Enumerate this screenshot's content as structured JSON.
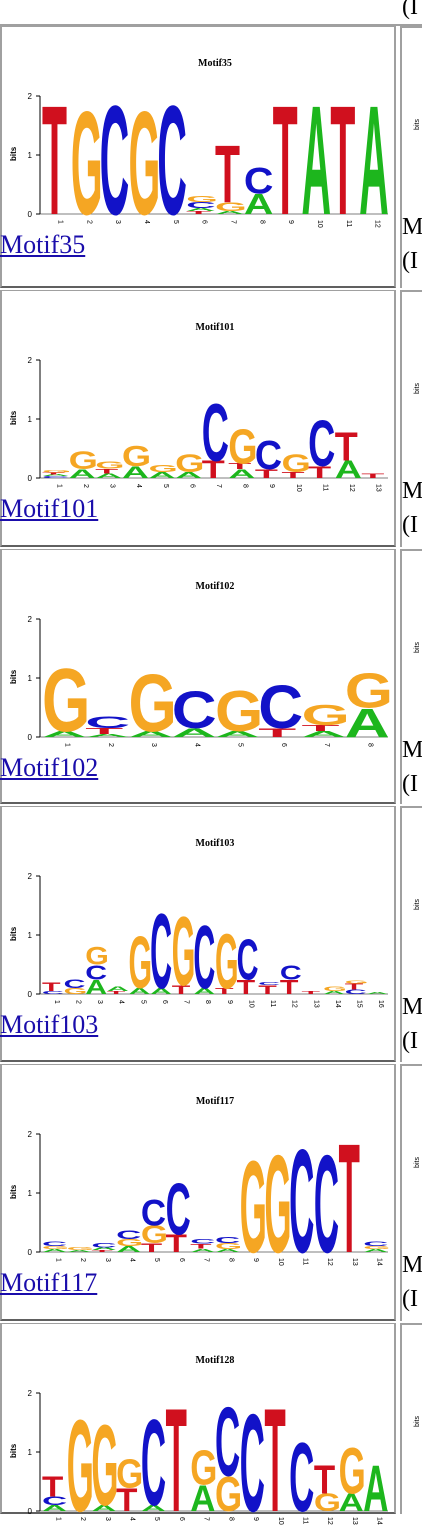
{
  "header": {
    "cut_text": "(I"
  },
  "rows": [
    {
      "title": "Motif35",
      "link": "Motif35",
      "right1": "M",
      "right2": "(I",
      "columns": 12
    },
    {
      "title": "Motif101",
      "link": "Motif101",
      "right1": "M",
      "right2": "(I",
      "columns": 13
    },
    {
      "title": "Motif102",
      "link": "Motif102",
      "right1": "M",
      "right2": "(I",
      "columns": 8
    },
    {
      "title": "Motif103",
      "link": "Motif103",
      "right1": "M",
      "right2": "(I",
      "columns": 16
    },
    {
      "title": "Motif117",
      "link": "Motif117",
      "right1": "M",
      "right2": "(I",
      "columns": 14
    },
    {
      "title": "Motif128",
      "link": "Motif128",
      "right1": "M",
      "right2": "(I",
      "columns": 14
    }
  ],
  "axis": {
    "ylabel": "bits",
    "ticks": [
      "0",
      "1",
      "2"
    ]
  },
  "colors": {
    "A": "#1db61d",
    "C": "#1212c8",
    "G": "#f5a623",
    "T": "#d0101e",
    "link": "#1a0dab"
  },
  "logos": [
    [
      [
        [
          "T",
          1.9
        ]
      ],
      [
        [
          "G",
          1.8
        ]
      ],
      [
        [
          "C",
          1.9
        ]
      ],
      [
        [
          "G",
          1.8
        ]
      ],
      [
        [
          "C",
          1.9
        ]
      ],
      [
        [
          "T",
          0.05
        ],
        [
          "A",
          0.05
        ],
        [
          "C",
          0.1
        ],
        [
          "G",
          0.1
        ]
      ],
      [
        [
          "A",
          0.05
        ],
        [
          "G",
          0.15
        ],
        [
          "T",
          1.0
        ]
      ],
      [
        [
          "A",
          0.35
        ],
        [
          "C",
          0.45
        ]
      ],
      [
        [
          "T",
          1.9
        ]
      ],
      [
        [
          "A",
          1.9
        ]
      ],
      [
        [
          "T",
          1.9
        ]
      ],
      [
        [
          "A",
          1.9
        ]
      ]
    ],
    [
      [
        [
          "C",
          0.03
        ],
        [
          "A",
          0.03
        ],
        [
          "T",
          0.03
        ],
        [
          "G",
          0.04
        ]
      ],
      [
        [
          "A",
          0.15
        ],
        [
          "G",
          0.3
        ]
      ],
      [
        [
          "A",
          0.08
        ],
        [
          "T",
          0.08
        ],
        [
          "G",
          0.12
        ]
      ],
      [
        [
          "A",
          0.2
        ],
        [
          "G",
          0.35
        ]
      ],
      [
        [
          "A",
          0.1
        ],
        [
          "G",
          0.12
        ]
      ],
      [
        [
          "A",
          0.1
        ],
        [
          "G",
          0.3
        ]
      ],
      [
        [
          "T",
          0.3
        ],
        [
          "C",
          1.0
        ]
      ],
      [
        [
          "A",
          0.15
        ],
        [
          "T",
          0.1
        ],
        [
          "G",
          0.6
        ]
      ],
      [
        [
          "T",
          0.15
        ],
        [
          "C",
          0.5
        ]
      ],
      [
        [
          "T",
          0.1
        ],
        [
          "G",
          0.3
        ]
      ],
      [
        [
          "T",
          0.2
        ],
        [
          "C",
          0.8
        ]
      ],
      [
        [
          "A",
          0.3
        ],
        [
          "T",
          0.5
        ]
      ],
      [
        [
          "T",
          0.08
        ]
      ]
    ],
    [
      [
        [
          "A",
          0.1
        ],
        [
          "G",
          1.1
        ]
      ],
      [
        [
          "A",
          0.05
        ],
        [
          "T",
          0.1
        ],
        [
          "C",
          0.2
        ]
      ],
      [
        [
          "A",
          0.1
        ],
        [
          "G",
          1.0
        ]
      ],
      [
        [
          "A",
          0.15
        ],
        [
          "C",
          0.65
        ]
      ],
      [
        [
          "A",
          0.1
        ],
        [
          "G",
          0.7
        ]
      ],
      [
        [
          "T",
          0.15
        ],
        [
          "C",
          0.75
        ]
      ],
      [
        [
          "A",
          0.1
        ],
        [
          "T",
          0.1
        ],
        [
          "G",
          0.35
        ]
      ],
      [
        [
          "A",
          0.5
        ],
        [
          "G",
          0.6
        ]
      ]
    ],
    [
      [
        [
          "C",
          0.05
        ],
        [
          "T",
          0.15
        ]
      ],
      [
        [
          "G",
          0.1
        ],
        [
          "C",
          0.15
        ]
      ],
      [
        [
          "A",
          0.25
        ],
        [
          "C",
          0.25
        ],
        [
          "G",
          0.3
        ]
      ],
      [
        [
          "T",
          0.05
        ],
        [
          "A",
          0.08
        ]
      ],
      [
        [
          "A",
          0.1
        ],
        [
          "G",
          0.9
        ]
      ],
      [
        [
          "A",
          0.1
        ],
        [
          "C",
          1.3
        ]
      ],
      [
        [
          "T",
          0.15
        ],
        [
          "G",
          1.2
        ]
      ],
      [
        [
          "A",
          0.1
        ],
        [
          "C",
          1.1
        ]
      ],
      [
        [
          "T",
          0.1
        ],
        [
          "G",
          0.95
        ]
      ],
      [
        [
          "T",
          0.25
        ],
        [
          "C",
          0.7
        ]
      ],
      [
        [
          "T",
          0.15
        ],
        [
          "C",
          0.05
        ]
      ],
      [
        [
          "T",
          0.25
        ],
        [
          "C",
          0.25
        ]
      ],
      [
        [
          "T",
          0.05
        ]
      ],
      [
        [
          "A",
          0.05
        ],
        [
          "G",
          0.08
        ]
      ],
      [
        [
          "C",
          0.08
        ],
        [
          "T",
          0.1
        ],
        [
          "G",
          0.05
        ]
      ],
      [
        [
          "A",
          0.03
        ]
      ]
    ],
    [
      [
        [
          "A",
          0.05
        ],
        [
          "G",
          0.05
        ],
        [
          "C",
          0.08
        ]
      ],
      [
        [
          "A",
          0.03
        ],
        [
          "G",
          0.05
        ]
      ],
      [
        [
          "T",
          0.03
        ],
        [
          "A",
          0.05
        ],
        [
          "C",
          0.08
        ]
      ],
      [
        [
          "A",
          0.1
        ],
        [
          "G",
          0.12
        ],
        [
          "C",
          0.15
        ]
      ],
      [
        [
          "T",
          0.15
        ],
        [
          "G",
          0.3
        ],
        [
          "C",
          0.45
        ]
      ],
      [
        [
          "T",
          0.3
        ],
        [
          "C",
          0.9
        ]
      ],
      [
        [
          "A",
          0.06
        ],
        [
          "T",
          0.08
        ],
        [
          "C",
          0.08
        ]
      ],
      [
        [
          "A",
          0.05
        ],
        [
          "G",
          0.1
        ],
        [
          "C",
          0.1
        ]
      ],
      [
        [
          "G",
          1.6
        ]
      ],
      [
        [
          "G",
          1.7
        ]
      ],
      [
        [
          "C",
          1.8
        ]
      ],
      [
        [
          "C",
          1.7
        ]
      ],
      [
        [
          "T",
          1.9
        ]
      ],
      [
        [
          "A",
          0.05
        ],
        [
          "G",
          0.05
        ],
        [
          "C",
          0.08
        ]
      ]
    ],
    [
      [
        [
          "A",
          0.1
        ],
        [
          "C",
          0.15
        ],
        [
          "T",
          0.35
        ]
      ],
      [
        [
          "G",
          1.6
        ]
      ],
      [
        [
          "A",
          0.1
        ],
        [
          "G",
          1.4
        ]
      ],
      [
        [
          "T",
          0.4
        ],
        [
          "G",
          0.5
        ]
      ],
      [
        [
          "A",
          0.1
        ],
        [
          "C",
          1.5
        ]
      ],
      [
        [
          "T",
          1.8
        ]
      ],
      [
        [
          "A",
          0.45
        ],
        [
          "G",
          0.6
        ]
      ],
      [
        [
          "G",
          0.6
        ],
        [
          "C",
          1.2
        ]
      ],
      [
        [
          "C",
          1.7
        ]
      ],
      [
        [
          "T",
          1.8
        ]
      ],
      [
        [
          "C",
          1.2
        ]
      ],
      [
        [
          "G",
          0.3
        ],
        [
          "T",
          0.5
        ]
      ],
      [
        [
          "A",
          0.3
        ],
        [
          "G",
          0.8
        ]
      ],
      [
        [
          "A",
          0.8
        ]
      ]
    ]
  ]
}
